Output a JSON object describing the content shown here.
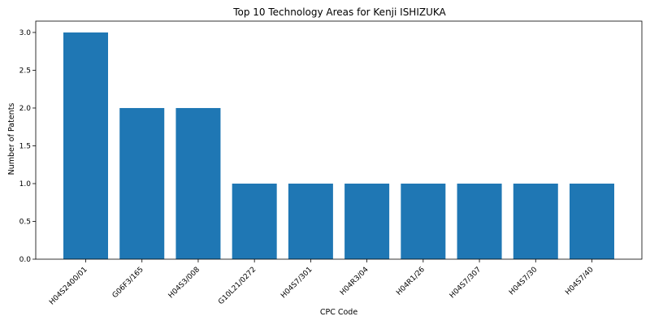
{
  "chart_data": {
    "type": "bar",
    "title": "Top 10 Technology Areas for Kenji ISHIZUKA",
    "xlabel": "CPC Code",
    "ylabel": "Number of Patents",
    "categories": [
      "H04S2400/01",
      "G06F3/165",
      "H04S3/008",
      "G10L21/0272",
      "H04S7/301",
      "H04R3/04",
      "H04R1/26",
      "H04S7/307",
      "H04S7/30",
      "H04S7/40"
    ],
    "values": [
      3,
      2,
      2,
      1,
      1,
      1,
      1,
      1,
      1,
      1
    ],
    "ylim": [
      0,
      3.15
    ],
    "yticks": [
      "0.0",
      "0.5",
      "1.0",
      "1.5",
      "2.0",
      "2.5",
      "3.0"
    ],
    "bar_color": "#1f77b4",
    "grid": false,
    "legend": "none"
  }
}
